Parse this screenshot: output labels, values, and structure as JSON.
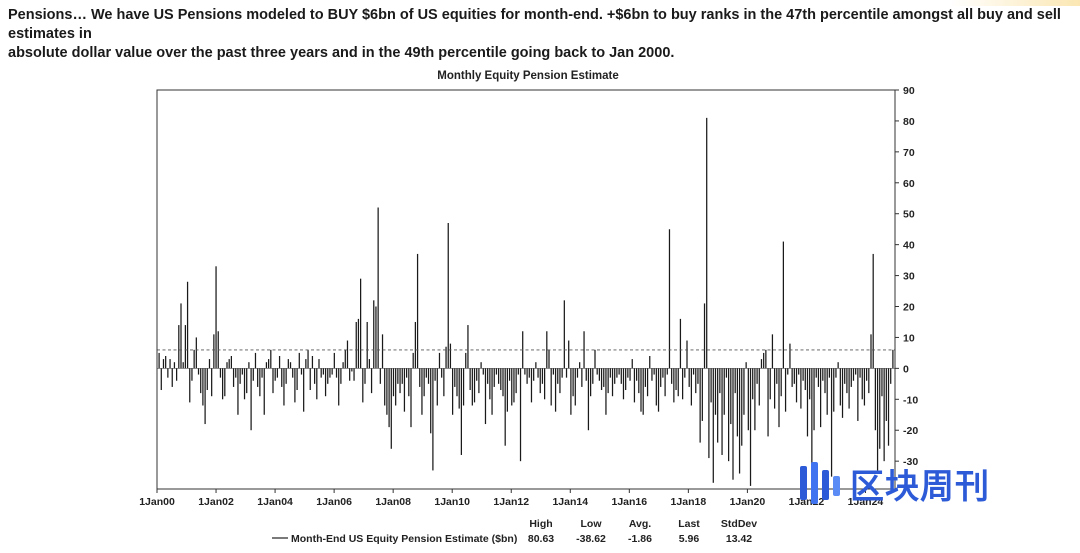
{
  "intro": {
    "line1": "Pensions… We have US Pensions modeled to BUY $6bn of US equities for month-end. +$6bn to buy ranks in the 47th percentile amongst all buy and sell estimates in",
    "line2": "absolute dollar value over the past three years and in the 49th percentile going back to Jan 2000."
  },
  "brand": {
    "text": "区块周刊"
  },
  "colors": {
    "bar": "#1a1a1a",
    "axis": "#333333",
    "dashed": "#555555",
    "brand": "#2d5bd8"
  },
  "chart_data": {
    "type": "bar",
    "title": "Monthly Equity Pension Estimate",
    "ylim": [
      -39,
      90
    ],
    "yticks": [
      90,
      80,
      70,
      60,
      50,
      40,
      30,
      20,
      10,
      0,
      -10,
      -20,
      -30
    ],
    "xticks": [
      "1Jan00",
      "1Jan02",
      "1Jan04",
      "1Jan06",
      "1Jan08",
      "1Jan10",
      "1Jan12",
      "1Jan14",
      "1Jan16",
      "1Jan18",
      "1Jan20",
      "1Jan22",
      "1Jan24"
    ],
    "x_start": "2000-01",
    "x_end": "2025-01",
    "reference_line": {
      "value": 5.96,
      "style": "dashed"
    },
    "series": [
      {
        "name": "Month-End US Equity Pension Estimate ($bn)",
        "values": [
          5,
          -7,
          3,
          4,
          -3,
          3,
          -6,
          2,
          -4,
          14,
          21,
          2,
          14,
          28,
          -11,
          -4,
          6,
          10,
          -2,
          -8,
          -12,
          -18,
          -7,
          3,
          -9,
          11,
          33,
          12,
          -3,
          -10,
          -9,
          2,
          3,
          4,
          -6,
          -3,
          -15,
          -5,
          -2,
          -10,
          -8,
          2,
          -20,
          -4,
          5,
          -6,
          -9,
          -3,
          -15,
          2,
          3,
          6,
          -8,
          -4,
          -3,
          4,
          -6,
          -12,
          -5,
          3,
          2,
          -3,
          -11,
          -7,
          5,
          -2,
          -14,
          3,
          6,
          -7,
          4,
          -5,
          -10,
          3,
          -3,
          -2,
          -9,
          -5,
          -3,
          -2,
          5,
          -3,
          -12,
          -5,
          2,
          6,
          9,
          -4,
          -1,
          -4,
          15,
          16,
          29,
          -11,
          -5,
          15,
          3,
          -8,
          22,
          20,
          52,
          -5,
          11,
          -12,
          -15,
          -19,
          -26,
          -9,
          -12,
          -5,
          -8,
          -5,
          -14,
          -3,
          -9,
          -19,
          5,
          15,
          37,
          -6,
          -15,
          -9,
          -3,
          -5,
          -21,
          -33,
          -4,
          -12,
          5,
          -3,
          -9,
          7,
          47,
          8,
          -15,
          -6,
          -9,
          -13,
          -28,
          -12,
          5,
          14,
          -7,
          -12,
          -11,
          -4,
          -8,
          2,
          -2,
          -18,
          -5,
          -10,
          -15,
          -6,
          -2,
          -5,
          -7,
          -9,
          -25,
          -14,
          -4,
          -12,
          -11,
          -8,
          -2,
          -30,
          12,
          -2,
          -5,
          -3,
          -11,
          -4,
          2,
          -3,
          -8,
          -5,
          -10,
          12,
          6,
          -12,
          -2,
          -14,
          -5,
          -8,
          -3,
          22,
          -3,
          9,
          -15,
          -9,
          -12,
          -3,
          2,
          -6,
          12,
          -4,
          -20,
          -9,
          -5,
          6,
          -2,
          -4,
          -7,
          -6,
          -15,
          -8,
          -3,
          -9,
          -5,
          -3,
          -2,
          -5,
          -10,
          -7,
          -3,
          -4,
          3,
          -11,
          -4,
          -8,
          -14,
          -15,
          -6,
          -9,
          4,
          -4,
          -2,
          -12,
          -14,
          -6,
          -3,
          -9,
          -2,
          45,
          -5,
          -11,
          -7,
          -9,
          16,
          -10,
          -3,
          9,
          -6,
          -12,
          -2,
          -8,
          -5,
          -24,
          -17,
          21,
          81,
          -29,
          -11,
          -37,
          -15,
          -24,
          -8,
          -28,
          -15,
          -3,
          -30,
          -18,
          -36,
          -8,
          -22,
          -34,
          -25,
          -15,
          2,
          -20,
          -38,
          -10,
          -20,
          -5,
          -12,
          3,
          5,
          6,
          -22,
          -10,
          11,
          -13,
          -5,
          -19,
          -9,
          41,
          -14,
          -2,
          8,
          -6,
          -5,
          -11,
          -2,
          -13,
          -4,
          -7,
          -22,
          -10,
          -31,
          -20,
          -3,
          -6,
          -19,
          -4,
          -8,
          -15,
          -3,
          -35,
          -14,
          -3,
          2,
          -12,
          -16,
          -5,
          -8,
          -13,
          -6,
          -4,
          -2,
          -17,
          -3,
          -10,
          -12,
          -4,
          -8,
          11,
          37,
          -20,
          -33,
          -26,
          -9,
          -30,
          -17,
          -25,
          -5,
          6
        ]
      }
    ],
    "stats": {
      "labels": [
        "High",
        "Low",
        "Avg.",
        "Last",
        "StdDev"
      ],
      "values": [
        "80.63",
        "-38.62",
        "-1.86",
        "5.96",
        "13.42"
      ]
    }
  }
}
